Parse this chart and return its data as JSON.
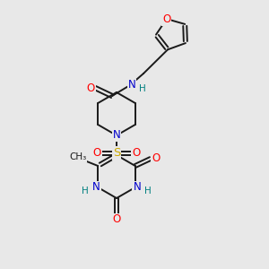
{
  "bg_color": "#e8e8e8",
  "bond_color": "#1a1a1a",
  "atom_colors": {
    "O": "#ff0000",
    "N": "#0000cc",
    "S": "#ccaa00",
    "C": "#1a1a1a",
    "H": "#008080"
  },
  "font_size": 8.5,
  "lw": 1.4,
  "fig_size": [
    3.0,
    3.0
  ],
  "dpi": 100,
  "xlim": [
    0,
    300
  ],
  "ylim": [
    0,
    300
  ]
}
